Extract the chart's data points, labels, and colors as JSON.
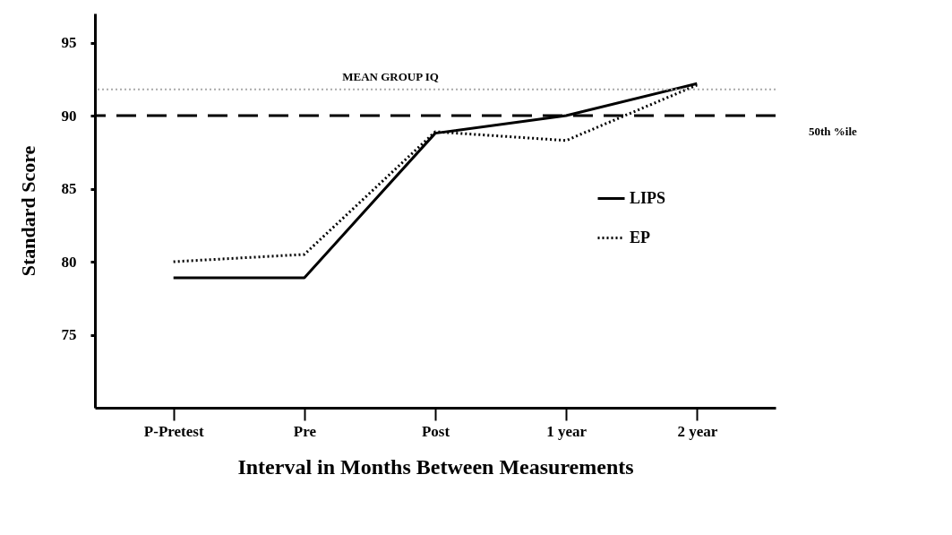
{
  "chart_data": {
    "type": "line",
    "xlabel": "Interval in Months Between Measurements",
    "ylabel": "Standard Score",
    "categories": [
      "P-Pretest",
      "Pre",
      "Post",
      "1 year",
      "2 year"
    ],
    "series": [
      {
        "name": "LIPS",
        "color": "#000000",
        "line_style": "solid",
        "values": [
          78.9,
          78.9,
          88.8,
          90.0,
          92.2
        ]
      },
      {
        "name": "EP",
        "color": "#000000",
        "line_style": "dotted",
        "values": [
          80.0,
          80.5,
          88.9,
          88.3,
          92.1
        ]
      }
    ],
    "ylim": [
      70,
      97
    ],
    "yticks": [
      75,
      80,
      85,
      90,
      95
    ],
    "ref_lines": [
      {
        "axis": "y",
        "value": 90,
        "label": "50th %ile",
        "color": "#000000",
        "line_style": "dashed"
      },
      {
        "axis": "y",
        "value": 91.8,
        "label": "MEAN GROUP IQ",
        "color": "#aaaaaa",
        "line_style": "dotted"
      }
    ],
    "grid": false,
    "legend": "right",
    "marker": "none"
  }
}
